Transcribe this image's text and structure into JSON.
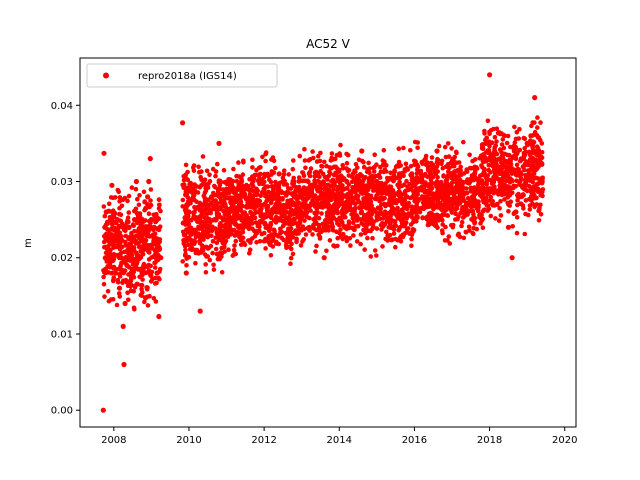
{
  "chart_data": {
    "type": "scatter",
    "title": "AC52 V",
    "xlabel": "",
    "ylabel": "m",
    "xlim": [
      2007.1,
      2020.3
    ],
    "ylim": [
      -0.0022,
      0.0462
    ],
    "xticks": [
      2008,
      2010,
      2012,
      2014,
      2016,
      2018,
      2020
    ],
    "xtick_labels": [
      "2008",
      "2010",
      "2012",
      "2014",
      "2016",
      "2018",
      "2020"
    ],
    "yticks": [
      0.0,
      0.01,
      0.02,
      0.03,
      0.04
    ],
    "ytick_labels": [
      "0.00",
      "0.01",
      "0.02",
      "0.03",
      "0.04"
    ],
    "grid": false,
    "legend": "top-left",
    "series": [
      {
        "name": "repro2018a (IGS14)",
        "color": "#ff0000",
        "marker": "circle",
        "x": [
          2007.72,
          2007.74,
          2007.76,
          2007.78,
          2007.8,
          2007.85,
          2007.9,
          2007.95,
          2008.0,
          2008.05,
          2008.1,
          2008.15,
          2008.2,
          2008.25,
          2008.27,
          2008.3,
          2008.35,
          2008.4,
          2008.45,
          2008.5,
          2008.55,
          2008.6,
          2008.65,
          2008.7,
          2008.75,
          2008.8,
          2008.85,
          2008.9,
          2008.93,
          2008.97,
          2009.0,
          2009.05,
          2009.1,
          2009.15,
          2009.2,
          2009.25,
          2009.83,
          2009.88,
          2009.93,
          2010.0,
          2010.1,
          2010.2,
          2010.3,
          2010.4,
          2010.5,
          2010.6,
          2010.7,
          2010.8,
          2010.9,
          2011.0,
          2011.2,
          2011.4,
          2011.6,
          2011.8,
          2012.0,
          2012.2,
          2012.4,
          2012.6,
          2012.8,
          2013.0,
          2013.2,
          2013.4,
          2013.6,
          2013.8,
          2014.0,
          2014.2,
          2014.4,
          2014.6,
          2014.8,
          2015.0,
          2015.2,
          2015.4,
          2015.6,
          2015.8,
          2016.0,
          2016.2,
          2016.4,
          2016.6,
          2016.8,
          2017.0,
          2017.2,
          2017.4,
          2017.6,
          2017.8,
          2017.9,
          2018.0,
          2018.1,
          2018.2,
          2018.3,
          2018.4,
          2018.5,
          2018.6,
          2018.7,
          2018.8,
          2018.9,
          2019.0,
          2019.1,
          2019.2,
          2019.3,
          2019.4
        ],
        "y": [
          0.0,
          0.0337,
          0.024,
          0.0185,
          0.026,
          0.023,
          0.021,
          0.0295,
          0.02,
          0.018,
          0.0215,
          0.016,
          0.02,
          0.011,
          0.006,
          0.014,
          0.019,
          0.0225,
          0.017,
          0.021,
          0.025,
          0.03,
          0.0185,
          0.023,
          0.018,
          0.0215,
          0.0265,
          0.028,
          0.03,
          0.033,
          0.025,
          0.023,
          0.021,
          0.018,
          0.0123,
          0.02,
          0.0377,
          0.023,
          0.018,
          0.026,
          0.022,
          0.025,
          0.013,
          0.027,
          0.023,
          0.028,
          0.025,
          0.035,
          0.027,
          0.029,
          0.0255,
          0.03,
          0.024,
          0.027,
          0.029,
          0.023,
          0.031,
          0.022,
          0.025,
          0.028,
          0.024,
          0.031,
          0.02,
          0.028,
          0.027,
          0.03,
          0.026,
          0.034,
          0.028,
          0.03,
          0.027,
          0.024,
          0.031,
          0.028,
          0.026,
          0.03,
          0.025,
          0.034,
          0.027,
          0.029,
          0.03,
          0.026,
          0.031,
          0.028,
          0.035,
          0.044,
          0.03,
          0.027,
          0.033,
          0.029,
          0.024,
          0.02,
          0.026,
          0.031,
          0.033,
          0.035,
          0.036,
          0.041,
          0.032,
          0.03
        ]
      }
    ],
    "density_segments": [
      {
        "x0": 2007.72,
        "x1": 2009.25,
        "mean": 0.0215,
        "spread": 0.004
      },
      {
        "x0": 2009.83,
        "x1": 2011.0,
        "mean": 0.025,
        "spread": 0.004
      },
      {
        "x0": 2011.0,
        "x1": 2013.0,
        "mean": 0.0265,
        "spread": 0.0035
      },
      {
        "x0": 2013.0,
        "x1": 2016.0,
        "mean": 0.0275,
        "spread": 0.0035
      },
      {
        "x0": 2016.0,
        "x1": 2017.8,
        "mean": 0.0285,
        "spread": 0.0032
      },
      {
        "x0": 2017.8,
        "x1": 2019.42,
        "mean": 0.031,
        "spread": 0.0035
      }
    ]
  }
}
